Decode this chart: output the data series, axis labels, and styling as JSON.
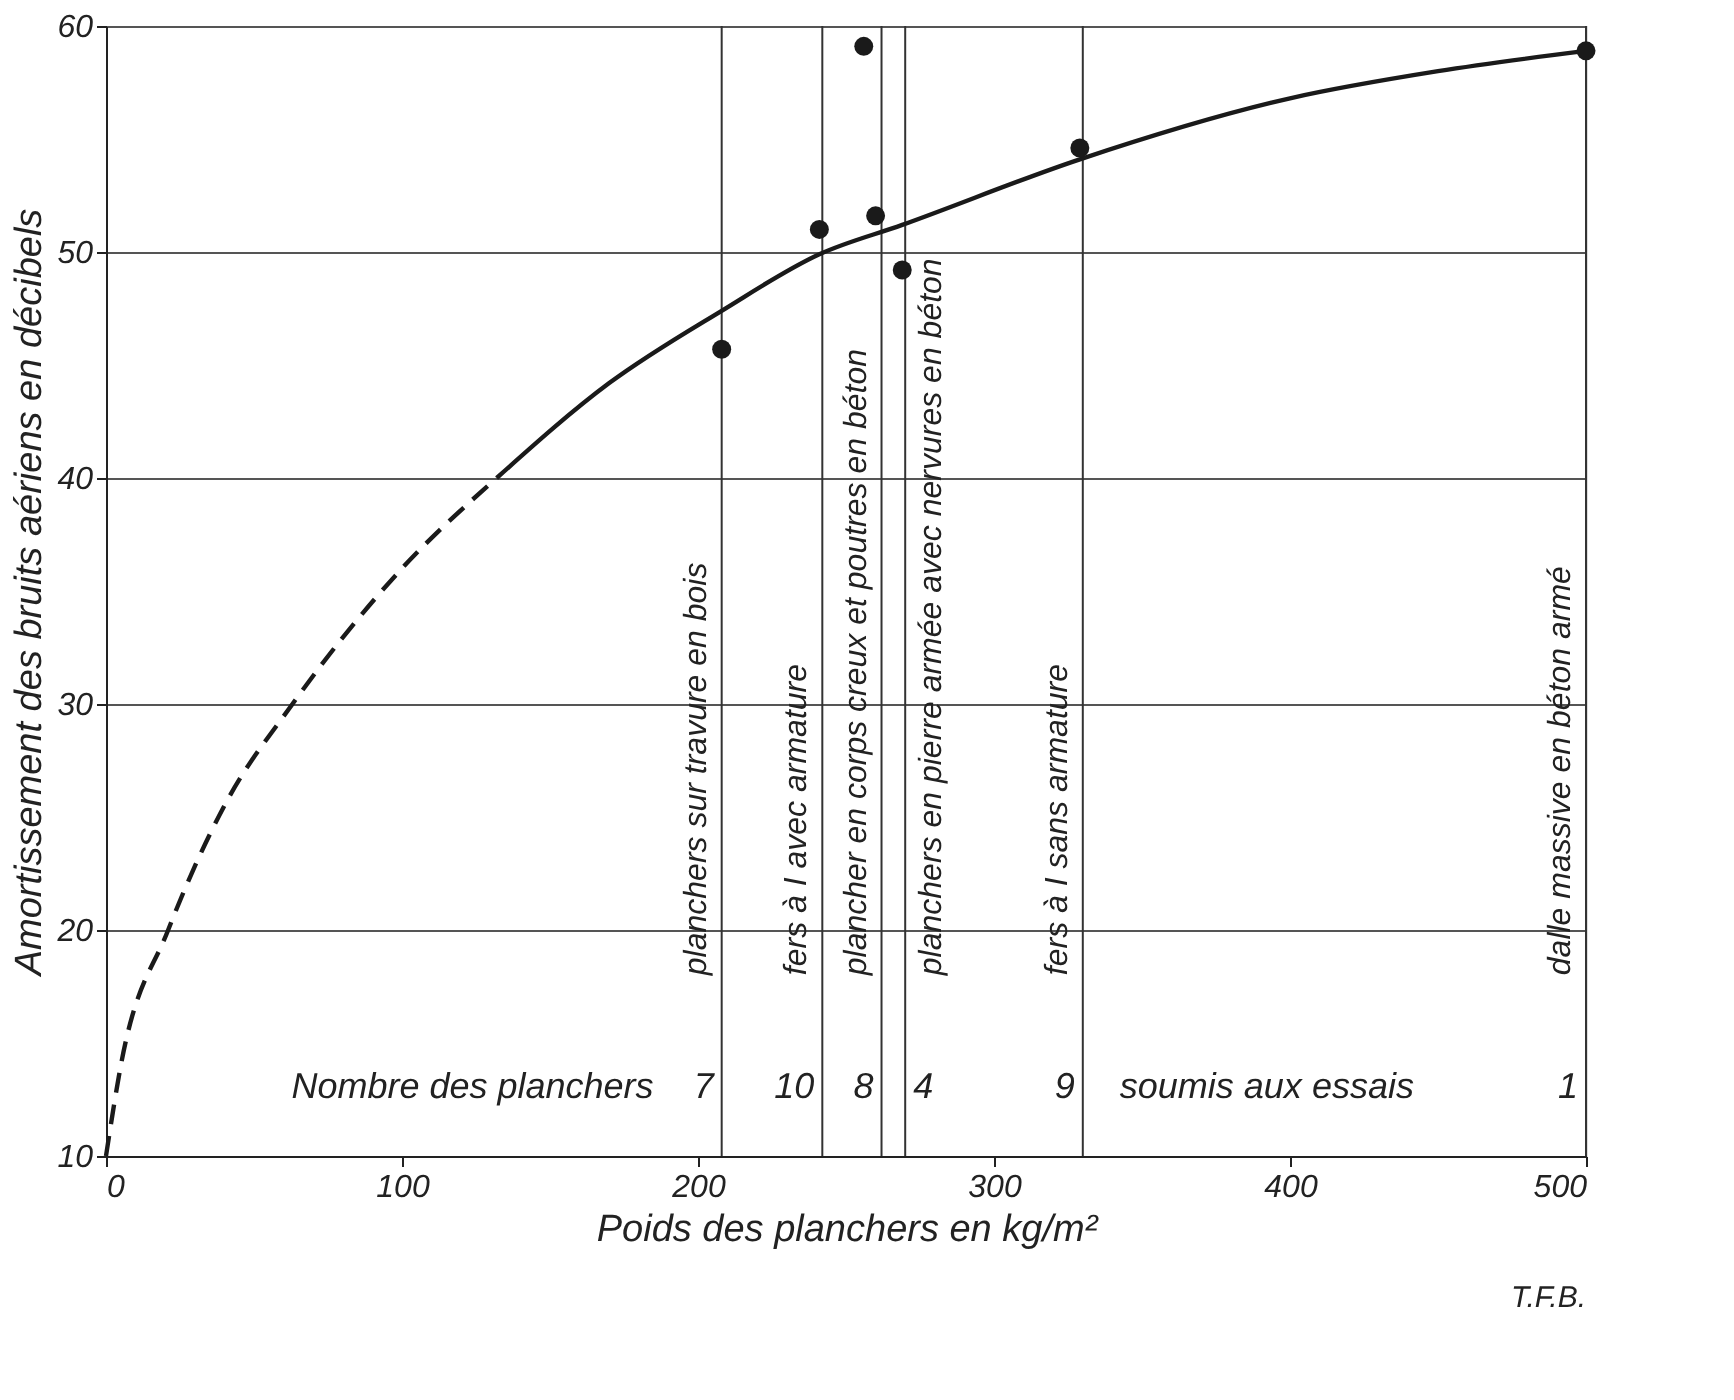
{
  "chart_data": {
    "type": "scatter",
    "xlabel": "Poids des planchers en kg/m²",
    "ylabel": "Amortissement des bruits aériens en décibels",
    "x": [
      208,
      241,
      256,
      260,
      269,
      329,
      500
    ],
    "values": [
      45.7,
      51.0,
      59.1,
      51.6,
      49.2,
      54.6,
      58.9
    ],
    "color": "#1a1a1a",
    "marker": "circle",
    "series": [
      {
        "type": "line",
        "line_style": "dashed",
        "marker": "none",
        "color": "#1a1a1a",
        "x": [
          0,
          5,
          21,
          40,
          63,
          100,
          132
        ],
        "values": [
          10,
          14,
          20,
          25.5,
          30,
          36,
          40
        ]
      },
      {
        "type": "line",
        "line_style": "solid",
        "marker": "none",
        "color": "#1a1a1a",
        "x": [
          132,
          170,
          208,
          241,
          269,
          329,
          400,
          450,
          500
        ],
        "values": [
          40,
          44.2,
          47.4,
          49.9,
          51.2,
          54.1,
          56.8,
          58,
          58.9
        ]
      }
    ],
    "ref_lines": [
      {
        "axis": "x",
        "value": 208,
        "label": "planchers sur travure  en bois"
      },
      {
        "axis": "x",
        "value": 242,
        "label": "fers à I avec armature"
      },
      {
        "axis": "x",
        "value": 262,
        "label": "plancher en corps creux et poutres en béton"
      },
      {
        "axis": "x",
        "value": 270,
        "label": "planchers en pierre armée avec nervures en béton"
      },
      {
        "axis": "x",
        "value": 330,
        "label": "fers à I sans armature"
      },
      {
        "axis": "x",
        "value": 500,
        "label": "dalle massive en béton armé"
      }
    ],
    "annotations": [
      "Nombre des planchers",
      {
        "text": "7",
        "x": 208,
        "y": 13
      },
      {
        "text": "10",
        "x": 242,
        "y": 13
      },
      {
        "text": "8",
        "x": 262,
        "y": 13
      },
      {
        "text": "4",
        "x": 270,
        "y": 13
      },
      {
        "text": "9",
        "x": 330,
        "y": 13
      },
      "soumis aux essais",
      {
        "text": "1",
        "x": 500,
        "y": 13
      },
      "T.F.B."
    ],
    "xlim": [
      0,
      500
    ],
    "xticks": [
      0,
      100,
      200,
      300,
      400,
      500
    ],
    "ylim": [
      10,
      60
    ],
    "yticks": [
      10,
      20,
      30,
      40,
      50,
      60
    ],
    "grid": "y"
  }
}
